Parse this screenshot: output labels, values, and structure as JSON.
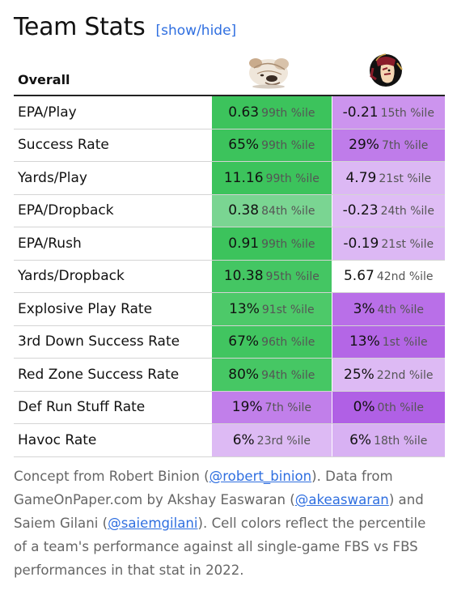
{
  "title": "Team Stats",
  "toggle": "[show/hide]",
  "header": {
    "section": "Overall"
  },
  "colors": {
    "link": "#2f6fe0",
    "green_strong": "#3cc35c",
    "green_light": "#7ad592",
    "purple_strong": "#b56ae7",
    "purple_mid": "#cc94ee",
    "purple_light": "#dfbdf5"
  },
  "rows": [
    {
      "label": "EPA/Play",
      "t1": {
        "v": "0.63",
        "p": "99th %ile",
        "bg": "#3cc35c"
      },
      "t2": {
        "v": "-0.21",
        "p": "15th %ile",
        "bg": "#cc94ee"
      }
    },
    {
      "label": "Success Rate",
      "t1": {
        "v": "65%",
        "p": "99th %ile",
        "bg": "#3cc35c"
      },
      "t2": {
        "v": "29%",
        "p": "7th %ile",
        "bg": "#bf7cea"
      }
    },
    {
      "label": "Yards/Play",
      "t1": {
        "v": "11.16",
        "p": "99th %ile",
        "bg": "#3cc35c"
      },
      "t2": {
        "v": "4.79",
        "p": "21st %ile",
        "bg": "#dcb8f4"
      }
    },
    {
      "label": "EPA/Dropback",
      "t1": {
        "v": "0.38",
        "p": "84th %ile",
        "bg": "#7ad592"
      },
      "t2": {
        "v": "-0.23",
        "p": "24th %ile",
        "bg": "#dfbdf5"
      }
    },
    {
      "label": "EPA/Rush",
      "t1": {
        "v": "0.91",
        "p": "99th %ile",
        "bg": "#3cc35c"
      },
      "t2": {
        "v": "-0.19",
        "p": "21st %ile",
        "bg": "#dcb8f4"
      }
    },
    {
      "label": "Yards/Dropback",
      "t1": {
        "v": "10.38",
        "p": "95th %ile",
        "bg": "#44c663"
      },
      "t2": {
        "v": "5.67",
        "p": "42nd %ile",
        "bg": "#ffffff"
      }
    },
    {
      "label": "Explosive Play Rate",
      "t1": {
        "v": "13%",
        "p": "91st %ile",
        "bg": "#4dc969"
      },
      "t2": {
        "v": "3%",
        "p": "4th %ile",
        "bg": "#b96fe8"
      }
    },
    {
      "label": "3rd Down Success Rate",
      "t1": {
        "v": "67%",
        "p": "96th %ile",
        "bg": "#41c560"
      },
      "t2": {
        "v": "13%",
        "p": "1st %ile",
        "bg": "#b466e6"
      }
    },
    {
      "label": "Red Zone Success Rate",
      "t1": {
        "v": "80%",
        "p": "94th %ile",
        "bg": "#46c764"
      },
      "t2": {
        "v": "25%",
        "p": "22nd %ile",
        "bg": "#ddbaf4"
      }
    },
    {
      "label": "Def Run Stuff Rate",
      "t1": {
        "v": "19%",
        "p": "7th %ile",
        "bg": "#c17fea"
      },
      "t2": {
        "v": "0%",
        "p": "0th %ile",
        "bg": "#b060e5"
      }
    },
    {
      "label": "Havoc Rate",
      "t1": {
        "v": "6%",
        "p": "23rd %ile",
        "bg": "#ddbaf4"
      },
      "t2": {
        "v": "6%",
        "p": "18th %ile",
        "bg": "#d8b1f3"
      }
    }
  ],
  "footer": {
    "t1": "Concept from Robert Binion (",
    "l1": "@robert_binion",
    "t2": "). Data from GameOnPaper.com by Akshay Easwaran (",
    "l2": "@akeaswaran",
    "t3": ") and Saiem Gilani (",
    "l3": "@saiemgilani",
    "t4": "). Cell colors reflect the percentile of a team's performance against all single-game FBS vs FBS performances in that stat in 2022."
  }
}
